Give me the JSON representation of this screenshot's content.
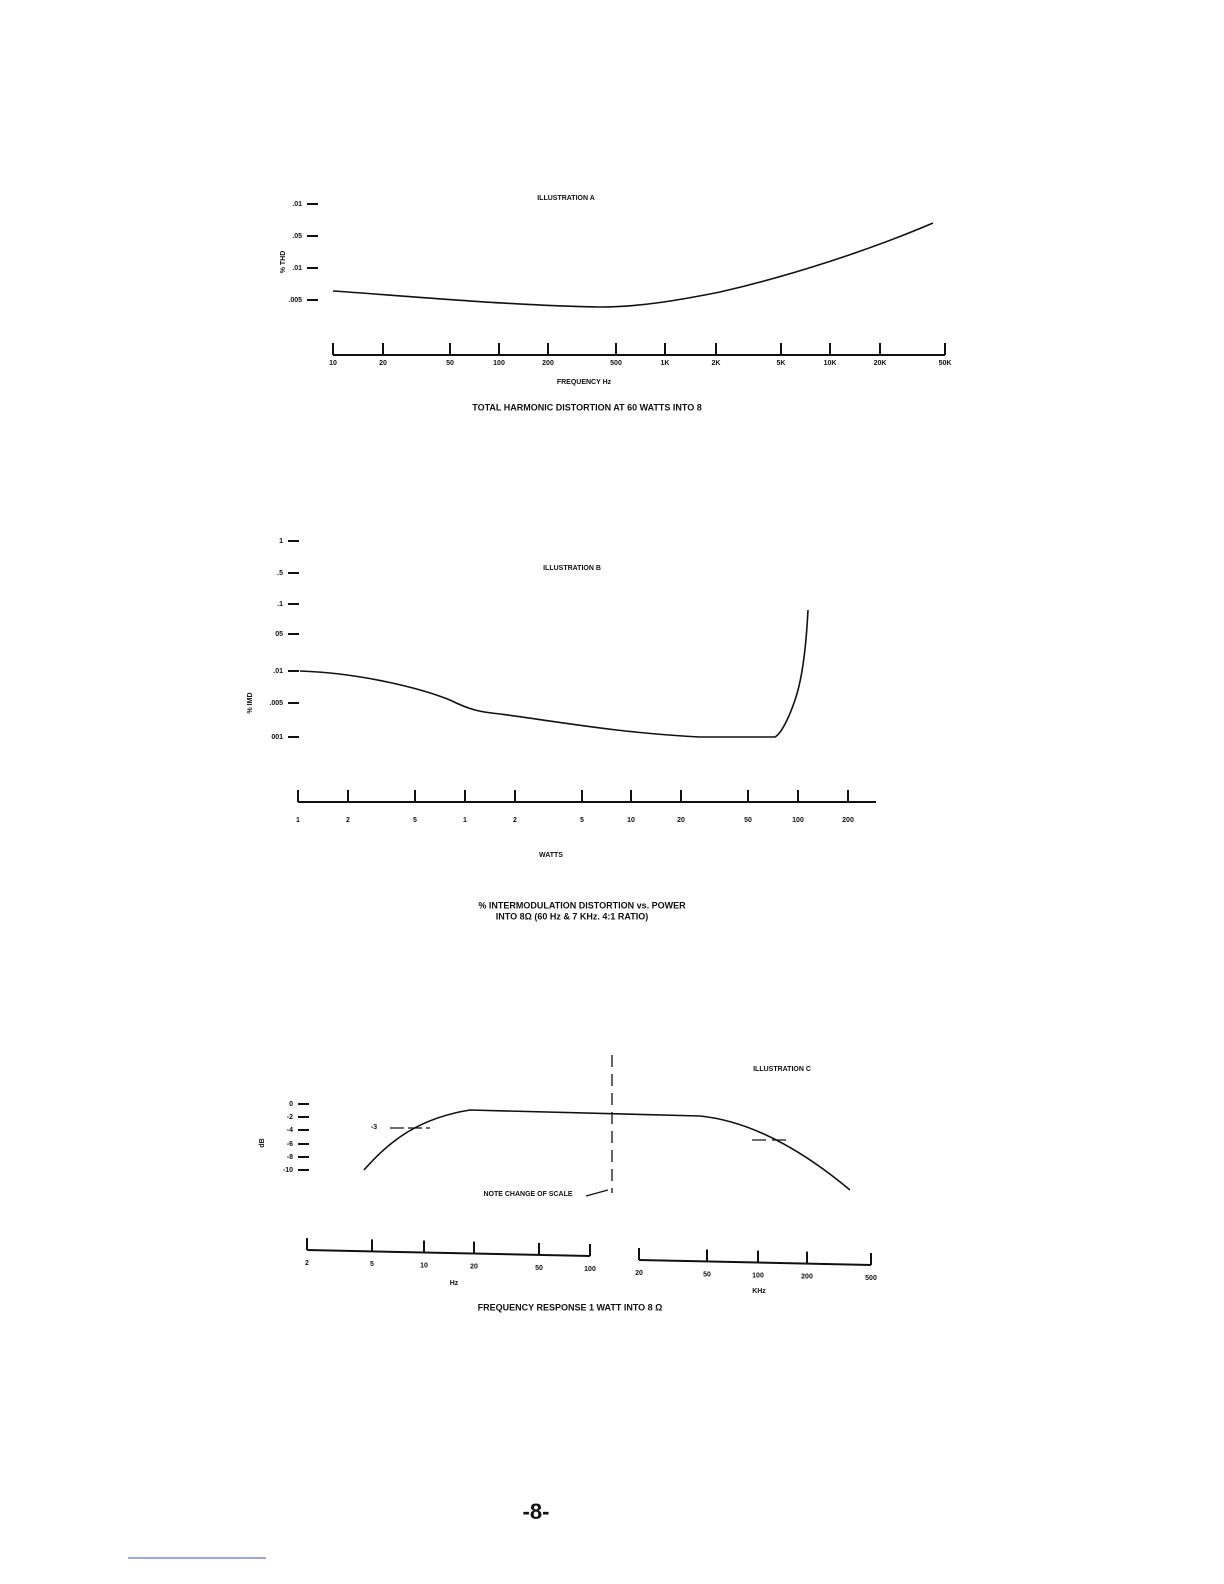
{
  "illustration_a": {
    "title": "ILLUSTRATION A",
    "y_axis_label": "% THD",
    "y_labels": [
      ".01",
      ".05",
      ".01",
      ".005"
    ],
    "x_labels": [
      "10",
      "20",
      "50",
      "100",
      "200",
      "500",
      "1K",
      "2K",
      "5K",
      "10K",
      "20K",
      "50K"
    ],
    "x_axis_label": "FREQUENCY Hz",
    "caption": "TOTAL HARMONIC DISTORTION AT 60 WATTS INTO 8"
  },
  "illustration_b": {
    "title": "ILLUSTRATION B",
    "y_axis_label": "% IMD",
    "y_labels": [
      "1",
      ".5",
      ".1",
      "05",
      ".01",
      ".005",
      "001"
    ],
    "x_labels": [
      "1",
      "2",
      "5",
      "1",
      "2",
      "5",
      "10",
      "20",
      "50",
      "100",
      "200"
    ],
    "x_axis_label": "WATTS",
    "caption": [
      "% INTERMODULATION DISTORTION vs. POWER",
      "INTO 8Ω (60 Hz & 7 KHz. 4:1 RATIO)"
    ]
  },
  "illustration_c": {
    "title": "ILLUSTRATION C",
    "y_axis_label": "dB",
    "y_labels": [
      "0",
      "-2",
      "-4",
      "-6",
      "-8",
      "-10"
    ],
    "marker_label": "-3",
    "note": "NOTE CHANGE OF SCALE",
    "left_x_labels": [
      "2",
      "5",
      "10",
      "20",
      "50",
      "100"
    ],
    "left_x_axis_label": "Hz",
    "right_x_labels": [
      "20",
      "50",
      "100",
      "200",
      "500"
    ],
    "right_x_axis_label": "KHz",
    "caption": "FREQUENCY RESPONSE 1 WATT INTO 8 Ω"
  },
  "page_number": "-8-"
}
